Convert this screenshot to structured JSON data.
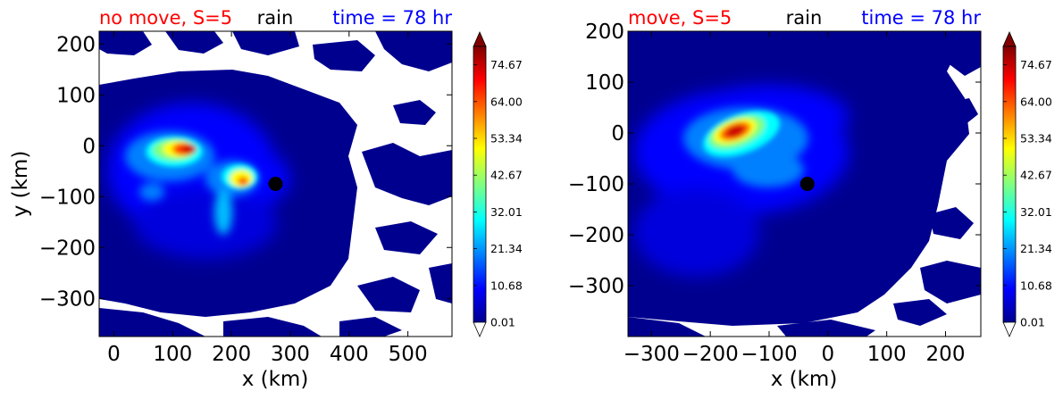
{
  "chart_data": [
    {
      "type": "heatmap",
      "title_left": "no move, S=5",
      "title_center": "rain",
      "title_right": "time = 78 hr",
      "title_colors": {
        "left": "#ff0000",
        "center": "#000000",
        "right": "#0000ff"
      },
      "xlabel": "x (km)",
      "ylabel": "y (km)",
      "xlim": [
        -25,
        575
      ],
      "ylim": [
        -375,
        225
      ],
      "xticks": [
        0,
        100,
        200,
        300,
        400,
        500
      ],
      "yticks": [
        200,
        100,
        0,
        -100,
        -200,
        -300
      ],
      "xtick_labels": [
        "0",
        "100",
        "200",
        "300",
        "400",
        "500"
      ],
      "ytick_labels": [
        "200",
        "100",
        "0",
        "−100",
        "−200",
        "−300"
      ],
      "center_marker": {
        "x": 275,
        "y": -75
      },
      "max_rain_region": {
        "x": 125,
        "y": 0,
        "value": 80
      },
      "colorbar": {
        "ticks": [
          0.01,
          10.68,
          21.34,
          32.01,
          42.67,
          53.34,
          64.0,
          74.67
        ],
        "tick_labels": [
          "0.01",
          "10.68",
          "21.34",
          "32.01",
          "42.67",
          "53.34",
          "64.00",
          "74.67"
        ],
        "extend": "both"
      }
    },
    {
      "type": "heatmap",
      "title_left": "move, S=5",
      "title_center": "rain",
      "title_right": "time = 78 hr",
      "title_colors": {
        "left": "#ff0000",
        "center": "#000000",
        "right": "#0000ff"
      },
      "xlabel": "x (km)",
      "ylabel": "",
      "xlim": [
        -340,
        260
      ],
      "ylim": [
        -400,
        200
      ],
      "xticks": [
        -300,
        -200,
        -100,
        0,
        100,
        200
      ],
      "yticks": [
        200,
        100,
        0,
        -100,
        -200,
        -300
      ],
      "xtick_labels": [
        "−300",
        "−200",
        "−100",
        "0",
        "100",
        "200"
      ],
      "ytick_labels": [
        "200",
        "100",
        "0",
        "−100",
        "−200",
        "−300"
      ],
      "center_marker": {
        "x": -35,
        "y": -100
      },
      "max_rain_region": {
        "x": -130,
        "y": 0,
        "value": 80
      },
      "colorbar": {
        "ticks": [
          0.01,
          10.68,
          21.34,
          32.01,
          42.67,
          53.34,
          64.0,
          74.67
        ],
        "tick_labels": [
          "0.01",
          "10.68",
          "21.34",
          "32.01",
          "42.67",
          "53.34",
          "64.00",
          "74.67"
        ],
        "extend": "both"
      }
    }
  ],
  "colormap": [
    "#00008f",
    "#0000ff",
    "#0080ff",
    "#00ffff",
    "#80ff80",
    "#ffff00",
    "#ff8000",
    "#ff0000",
    "#800000"
  ]
}
